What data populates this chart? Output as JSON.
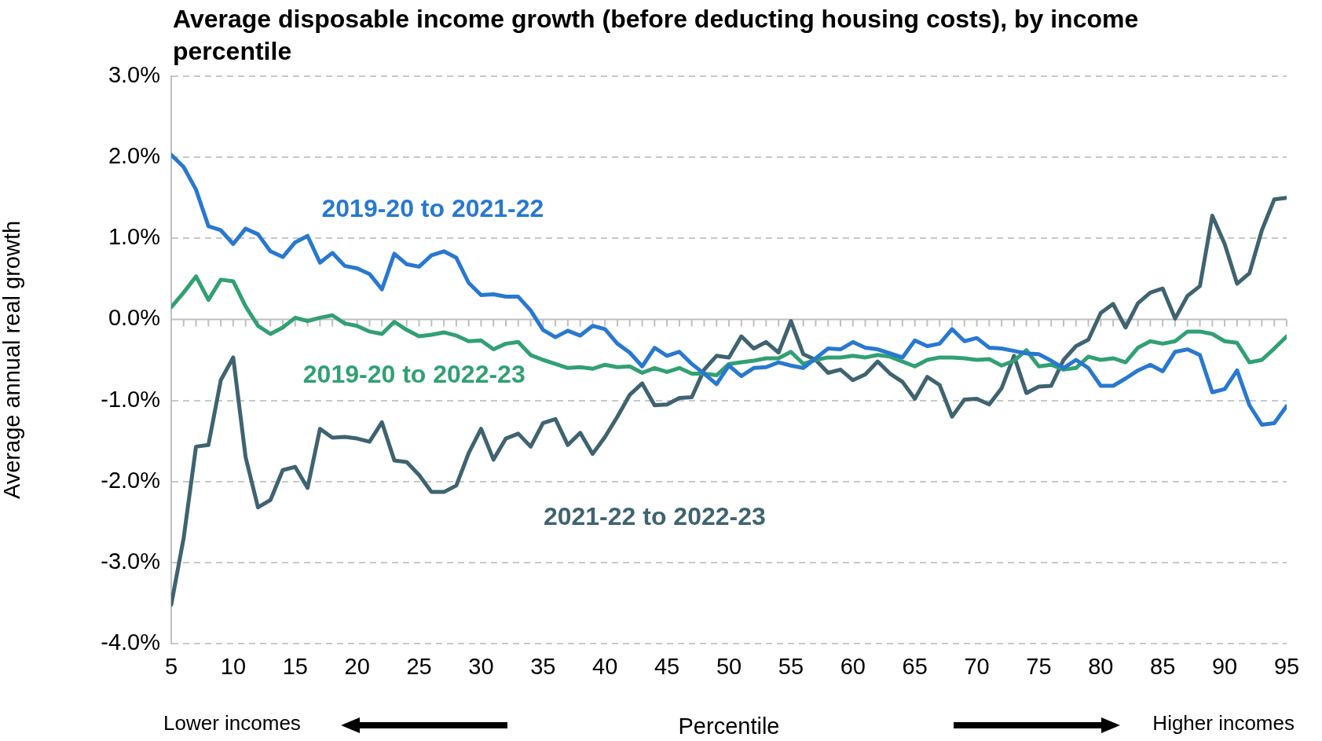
{
  "chart_data": {
    "type": "line",
    "title": "Average disposable income growth (before deducting housing costs), by income percentile",
    "xlabel": "Percentile",
    "ylabel": "Average annual real growth",
    "annotations": [
      "Lower incomes",
      "Higher incomes"
    ],
    "x": [
      5,
      6,
      7,
      8,
      9,
      10,
      11,
      12,
      13,
      14,
      15,
      16,
      17,
      18,
      19,
      20,
      21,
      22,
      23,
      24,
      25,
      26,
      27,
      28,
      29,
      30,
      31,
      32,
      33,
      34,
      35,
      36,
      37,
      38,
      39,
      40,
      41,
      42,
      43,
      44,
      45,
      46,
      47,
      48,
      49,
      50,
      51,
      52,
      53,
      54,
      55,
      56,
      57,
      58,
      59,
      60,
      61,
      62,
      63,
      64,
      65,
      66,
      67,
      68,
      69,
      70,
      71,
      72,
      73,
      74,
      75,
      76,
      77,
      78,
      79,
      80,
      81,
      82,
      83,
      84,
      85,
      86,
      87,
      88,
      89,
      90,
      91,
      92,
      93,
      94,
      95
    ],
    "xlim": [
      5,
      95
    ],
    "xticks": [
      5,
      10,
      15,
      20,
      25,
      30,
      35,
      40,
      45,
      50,
      55,
      60,
      65,
      70,
      75,
      80,
      85,
      90,
      95
    ],
    "ylim": [
      -4,
      3
    ],
    "yticks": [
      {
        "value": -4,
        "label": "-4.0%"
      },
      {
        "value": -3,
        "label": "-3.0%"
      },
      {
        "value": -2,
        "label": "-2.0%"
      },
      {
        "value": -1,
        "label": "-1.0%"
      },
      {
        "value": 0,
        "label": "0.0%"
      },
      {
        "value": 1,
        "label": "1.0%"
      },
      {
        "value": 2,
        "label": "2.0%"
      },
      {
        "value": 3,
        "label": "3.0%"
      }
    ],
    "grid": "y",
    "legend": false,
    "marker": "none",
    "line_style": "solid",
    "series": [
      {
        "name": "2019-20 to 2021-22",
        "color": "#2878d0",
        "values": [
          2.03,
          1.88,
          1.6,
          1.15,
          1.1,
          0.93,
          1.12,
          1.05,
          0.84,
          0.77,
          0.95,
          1.03,
          0.7,
          0.82,
          0.66,
          0.63,
          0.56,
          0.37,
          0.81,
          0.68,
          0.65,
          0.79,
          0.84,
          0.76,
          0.45,
          0.3,
          0.31,
          0.28,
          0.28,
          0.11,
          -0.13,
          -0.22,
          -0.14,
          -0.2,
          -0.08,
          -0.12,
          -0.3,
          -0.41,
          -0.58,
          -0.35,
          -0.45,
          -0.4,
          -0.55,
          -0.67,
          -0.8,
          -0.57,
          -0.7,
          -0.6,
          -0.59,
          -0.53,
          -0.57,
          -0.6,
          -0.48,
          -0.36,
          -0.37,
          -0.28,
          -0.35,
          -0.37,
          -0.42,
          -0.47,
          -0.26,
          -0.33,
          -0.3,
          -0.12,
          -0.27,
          -0.23,
          -0.35,
          -0.36,
          -0.39,
          -0.42,
          -0.43,
          -0.51,
          -0.6,
          -0.5,
          -0.6,
          -0.82,
          -0.82,
          -0.73,
          -0.63,
          -0.56,
          -0.64,
          -0.4,
          -0.37,
          -0.44,
          -0.9,
          -0.86,
          -0.63,
          -1.06,
          -1.3,
          -1.28,
          -1.07
        ]
      },
      {
        "name": "2019-20 to 2022-23",
        "color": "#31a072",
        "values": [
          0.15,
          0.33,
          0.53,
          0.24,
          0.49,
          0.47,
          0.16,
          -0.08,
          -0.18,
          -0.1,
          0.02,
          -0.02,
          0.02,
          0.05,
          -0.05,
          -0.08,
          -0.15,
          -0.18,
          -0.03,
          -0.13,
          -0.21,
          -0.19,
          -0.16,
          -0.2,
          -0.27,
          -0.26,
          -0.37,
          -0.3,
          -0.28,
          -0.44,
          -0.5,
          -0.55,
          -0.6,
          -0.59,
          -0.61,
          -0.56,
          -0.59,
          -0.58,
          -0.66,
          -0.6,
          -0.65,
          -0.6,
          -0.67,
          -0.67,
          -0.69,
          -0.55,
          -0.53,
          -0.51,
          -0.48,
          -0.48,
          -0.4,
          -0.55,
          -0.5,
          -0.47,
          -0.47,
          -0.45,
          -0.47,
          -0.44,
          -0.46,
          -0.52,
          -0.58,
          -0.5,
          -0.47,
          -0.47,
          -0.48,
          -0.5,
          -0.49,
          -0.57,
          -0.51,
          -0.38,
          -0.58,
          -0.56,
          -0.62,
          -0.6,
          -0.46,
          -0.5,
          -0.48,
          -0.53,
          -0.35,
          -0.27,
          -0.3,
          -0.27,
          -0.15,
          -0.15,
          -0.18,
          -0.27,
          -0.29,
          -0.53,
          -0.5,
          -0.36,
          -0.21
        ]
      },
      {
        "name": "2021-22 to 2022-23",
        "color": "#3f6370",
        "values": [
          -3.52,
          -2.7,
          -1.57,
          -1.55,
          -0.75,
          -0.47,
          -1.7,
          -2.32,
          -2.23,
          -1.86,
          -1.82,
          -2.08,
          -1.35,
          -1.46,
          -1.45,
          -1.47,
          -1.51,
          -1.27,
          -1.74,
          -1.76,
          -1.92,
          -2.13,
          -2.13,
          -2.05,
          -1.65,
          -1.35,
          -1.73,
          -1.47,
          -1.41,
          -1.57,
          -1.28,
          -1.23,
          -1.55,
          -1.4,
          -1.66,
          -1.45,
          -1.2,
          -0.93,
          -0.79,
          -1.06,
          -1.05,
          -0.97,
          -0.96,
          -0.62,
          -0.45,
          -0.47,
          -0.21,
          -0.36,
          -0.28,
          -0.41,
          -0.02,
          -0.43,
          -0.5,
          -0.66,
          -0.62,
          -0.75,
          -0.68,
          -0.52,
          -0.67,
          -0.77,
          -0.98,
          -0.71,
          -0.81,
          -1.2,
          -0.99,
          -0.98,
          -1.05,
          -0.85,
          -0.45,
          -0.91,
          -0.83,
          -0.82,
          -0.5,
          -0.33,
          -0.25,
          0.08,
          0.19,
          -0.1,
          0.2,
          0.33,
          0.38,
          0.01,
          0.29,
          0.41,
          1.28,
          0.93,
          0.44,
          0.57,
          1.1,
          1.48,
          1.5
        ]
      }
    ]
  }
}
